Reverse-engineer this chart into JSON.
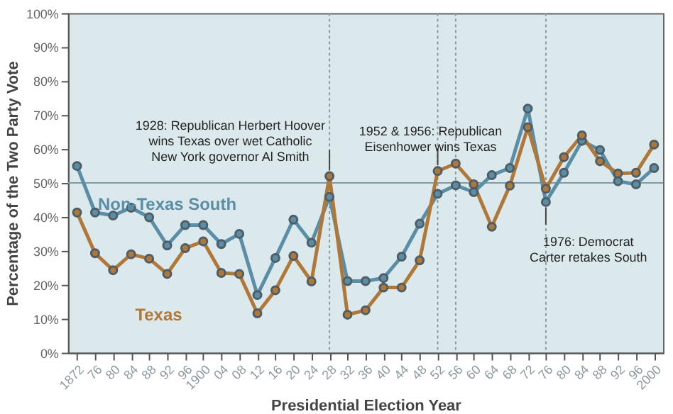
{
  "chart_data": {
    "type": "line",
    "xlabel": "Presidential Election Year",
    "ylabel": "Percentage of the Two Party Vote",
    "x": [
      1872,
      1876,
      1880,
      1884,
      1888,
      1892,
      1896,
      1900,
      1904,
      1908,
      1912,
      1916,
      1920,
      1924,
      1928,
      1932,
      1936,
      1940,
      1944,
      1948,
      1952,
      1956,
      1960,
      1964,
      1968,
      1972,
      1976,
      1980,
      1984,
      1988,
      1992,
      1996,
      2000
    ],
    "xlim": [
      1870,
      2002
    ],
    "xticks": [
      {
        "value": 1872,
        "label": "1872"
      },
      {
        "value": 1876,
        "label": "76"
      },
      {
        "value": 1880,
        "label": "80"
      },
      {
        "value": 1884,
        "label": "84"
      },
      {
        "value": 1888,
        "label": "88"
      },
      {
        "value": 1892,
        "label": "92"
      },
      {
        "value": 1896,
        "label": "96"
      },
      {
        "value": 1900,
        "label": "1900"
      },
      {
        "value": 1904,
        "label": "04"
      },
      {
        "value": 1908,
        "label": "08"
      },
      {
        "value": 1912,
        "label": "12"
      },
      {
        "value": 1916,
        "label": "16"
      },
      {
        "value": 1920,
        "label": "20"
      },
      {
        "value": 1924,
        "label": "24"
      },
      {
        "value": 1928,
        "label": "28"
      },
      {
        "value": 1932,
        "label": "32"
      },
      {
        "value": 1936,
        "label": "36"
      },
      {
        "value": 1940,
        "label": "40"
      },
      {
        "value": 1944,
        "label": "44"
      },
      {
        "value": 1948,
        "label": "48"
      },
      {
        "value": 1952,
        "label": "52"
      },
      {
        "value": 1956,
        "label": "56"
      },
      {
        "value": 1960,
        "label": "60"
      },
      {
        "value": 1964,
        "label": "64"
      },
      {
        "value": 1968,
        "label": "68"
      },
      {
        "value": 1972,
        "label": "72"
      },
      {
        "value": 1976,
        "label": "76"
      },
      {
        "value": 1980,
        "label": "80"
      },
      {
        "value": 1984,
        "label": "84"
      },
      {
        "value": 1988,
        "label": "88"
      },
      {
        "value": 1992,
        "label": "92"
      },
      {
        "value": 1996,
        "label": "96"
      },
      {
        "value": 2000,
        "label": "2000"
      }
    ],
    "series": [
      {
        "name": "Non-Texas South",
        "color": "#5a8ea6",
        "values": [
          55,
          41.3,
          40.4,
          42.7,
          39.9,
          31.6,
          37.6,
          37.6,
          32,
          35,
          17,
          27.9,
          39.2,
          32.4,
          45.9,
          21.1,
          21.1,
          22,
          28.3,
          38,
          46.8,
          49.3,
          47.3,
          52.3,
          54.4,
          71.9,
          44.4,
          53,
          62.4,
          59.7,
          50.5,
          49.6,
          54.4
        ]
      },
      {
        "name": "Texas",
        "color": "#b07838",
        "values": [
          41.3,
          29.3,
          24.3,
          29,
          27.7,
          23.2,
          30.8,
          32.8,
          23.5,
          23.2,
          11.6,
          18.4,
          28.5,
          21,
          52,
          11.2,
          12.5,
          19.2,
          19.2,
          27.2,
          53.5,
          55.7,
          49.6,
          37.1,
          49.2,
          66.4,
          48.3,
          57.6,
          64,
          56.4,
          52.8,
          53,
          61.3
        ]
      }
    ],
    "ylim": [
      0,
      100
    ],
    "yticks": [
      {
        "value": 0,
        "label": "0%"
      },
      {
        "value": 10,
        "label": "10%"
      },
      {
        "value": 20,
        "label": "20%"
      },
      {
        "value": 30,
        "label": "30%"
      },
      {
        "value": 40,
        "label": "40%"
      },
      {
        "value": 50,
        "label": "50%"
      },
      {
        "value": 60,
        "label": "60%"
      },
      {
        "value": 70,
        "label": "70%"
      },
      {
        "value": 80,
        "label": "80%"
      },
      {
        "value": 90,
        "label": "90%"
      },
      {
        "value": 100,
        "label": "100%"
      }
    ],
    "ref_lines": [
      {
        "axis": "y",
        "value": 50,
        "color": "#7f9aa3",
        "line_style": "solid"
      },
      {
        "axis": "x",
        "value": 1928,
        "color": "#8a9aa0",
        "line_style": "dotted"
      },
      {
        "axis": "x",
        "value": 1952,
        "color": "#8a9aa0",
        "line_style": "dotted"
      },
      {
        "axis": "x",
        "value": 1956,
        "color": "#8a9aa0",
        "line_style": "dotted"
      },
      {
        "axis": "x",
        "value": 1976,
        "color": "#8a9aa0",
        "line_style": "dotted"
      }
    ],
    "annotations": [
      {
        "text": "1928: Republican Herbert Hoover\nwins Texas over wet Catholic\nNew York governor Al Smith",
        "x": 1928,
        "y": 52
      },
      {
        "text": "1952 & 1956: Republican\nEisenhower wins Texas",
        "x": 1952,
        "y": 53.5
      },
      {
        "text": "1976: Democrat\nCarter retakes South",
        "x": 1976,
        "y": 44.4
      }
    ],
    "grid": false,
    "legend": false,
    "marker": "circle",
    "line_style": "solid"
  }
}
